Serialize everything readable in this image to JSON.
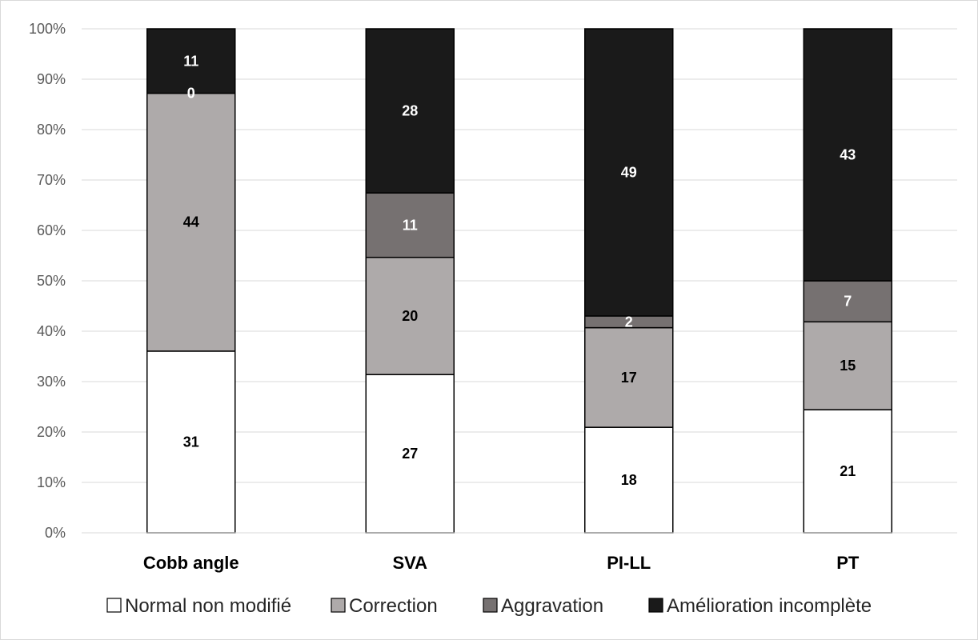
{
  "chart_data": {
    "type": "bar",
    "stacked": true,
    "normalized": true,
    "categories": [
      "Cobb angle",
      "SVA",
      "PI-LL",
      "PT"
    ],
    "series": [
      {
        "name": "Normal non modifié",
        "values": [
          31,
          27,
          18,
          21
        ],
        "color": "#ffffff",
        "label_color": "#000000"
      },
      {
        "name": "Correction",
        "values": [
          44,
          20,
          17,
          15
        ],
        "color": "#aeaaaa",
        "label_color": "#000000"
      },
      {
        "name": "Aggravation",
        "values": [
          0,
          11,
          2,
          7
        ],
        "color": "#767171",
        "label_color": "#ffffff"
      },
      {
        "name": "Amélioration incomplète",
        "values": [
          11,
          28,
          49,
          43
        ],
        "color": "#1a1a1a",
        "label_color": "#ffffff"
      }
    ],
    "y_ticks": [
      "0%",
      "10%",
      "20%",
      "30%",
      "40%",
      "50%",
      "60%",
      "70%",
      "80%",
      "90%",
      "100%"
    ],
    "ylim": [
      0,
      100
    ],
    "title": "",
    "xlabel": "",
    "ylabel": "",
    "grid": true,
    "legend_position": "bottom"
  }
}
